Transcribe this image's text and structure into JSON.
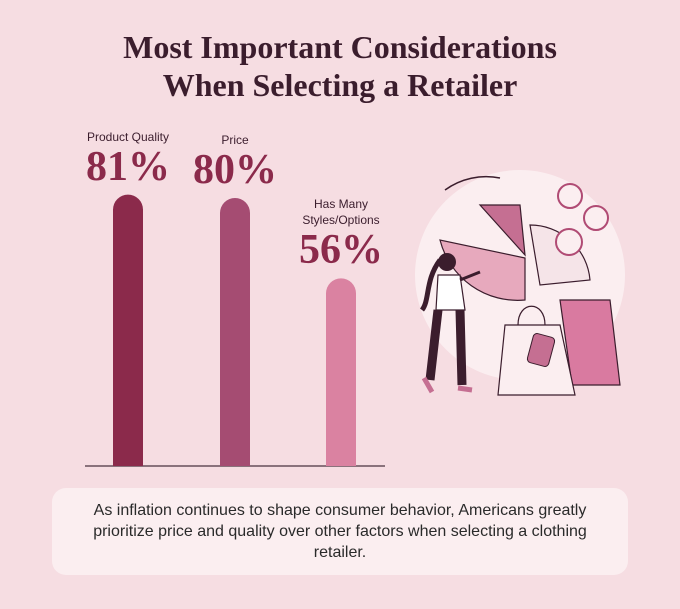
{
  "chart_data": {
    "type": "bar",
    "title": "Most Important Considerations When Selecting a Retailer",
    "categories": [
      "Product Quality",
      "Price",
      "Has Many Styles/Options"
    ],
    "values": [
      81,
      80,
      56
    ],
    "value_labels": [
      "81%",
      "80%",
      "56%"
    ],
    "colors": [
      "#8b2a4b",
      "#a54c72",
      "#da82a1"
    ],
    "caption": "As inflation continues to shape consumer behavior, Americans greatly prioritize price and quality over other factors when selecting a clothing retailer."
  }
}
